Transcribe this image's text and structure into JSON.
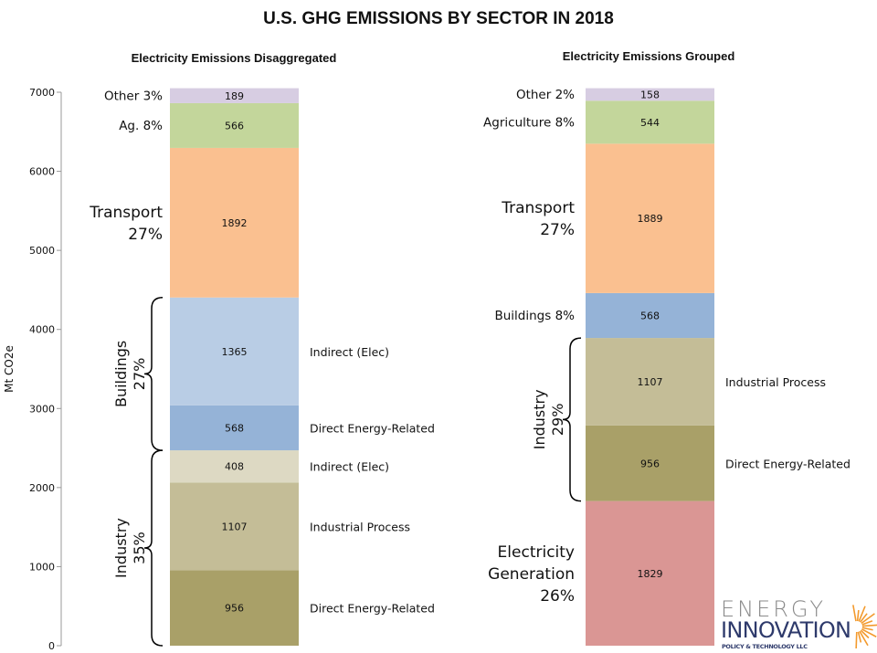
{
  "title": "U.S. GHG EMISSIONS BY SECTOR IN 2018",
  "logo": {
    "line1": "ENERGY",
    "line2": "INNOVATION",
    "line3": "POLICY & TECHNOLOGY LLC"
  },
  "chart_data": [
    {
      "type": "stacked-bar",
      "title": "Electricity Emissions Disaggregated",
      "ylabel": "Mt CO2e",
      "ylim": [
        0,
        7000
      ],
      "yticks": [
        "0",
        "1000",
        "2000",
        "3000",
        "4000",
        "5000",
        "6000",
        "7000"
      ],
      "segments": [
        {
          "value": 956,
          "color": "#a9a068",
          "right_label": "Direct Energy-Related"
        },
        {
          "value": 1107,
          "color": "#c4bd97",
          "right_label": "Industrial Process"
        },
        {
          "value": 408,
          "color": "#ddd9c3",
          "right_label": "Indirect (Elec)"
        },
        {
          "value": 568,
          "color": "#95b3d7",
          "right_label": "Direct Energy-Related"
        },
        {
          "value": 1365,
          "color": "#b9cde5",
          "right_label": "Indirect (Elec)"
        },
        {
          "value": 1892,
          "color": "#fac090",
          "left_label": [
            "Transport",
            "27%"
          ]
        },
        {
          "value": 566,
          "color": "#c3d69b",
          "left_label": [
            "Ag. 8%"
          ]
        },
        {
          "value": 189,
          "color": "#d7cde2",
          "left_label": [
            "Other 3%"
          ]
        }
      ],
      "groups": [
        {
          "from": 0,
          "to": 2471,
          "label": [
            "Industry",
            "35%"
          ]
        },
        {
          "from": 2471,
          "to": 4404,
          "label": [
            "Buildings",
            "27%"
          ]
        }
      ]
    },
    {
      "type": "stacked-bar",
      "title": "Electricity Emissions Grouped",
      "ylim": [
        0,
        7000
      ],
      "segments": [
        {
          "value": 1829,
          "color": "#da9694",
          "left_label": [
            "Electricity",
            "Generation",
            "26%"
          ]
        },
        {
          "value": 956,
          "color": "#a9a068",
          "right_label": "Direct Energy-Related"
        },
        {
          "value": 1107,
          "color": "#c4bd97",
          "right_label": "Industrial Process"
        },
        {
          "value": 568,
          "color": "#95b3d7",
          "left_label": [
            "Buildings 8%"
          ]
        },
        {
          "value": 1889,
          "color": "#fac090",
          "left_label": [
            "Transport",
            "27%"
          ]
        },
        {
          "value": 544,
          "color": "#c3d69b",
          "left_label": [
            "Agriculture 8%"
          ]
        },
        {
          "value": 158,
          "color": "#d7cde2",
          "left_label": [
            "Other 2%"
          ]
        }
      ],
      "groups": [
        {
          "from": 1829,
          "to": 3892,
          "label": [
            "Industry",
            "29%"
          ]
        }
      ]
    }
  ]
}
